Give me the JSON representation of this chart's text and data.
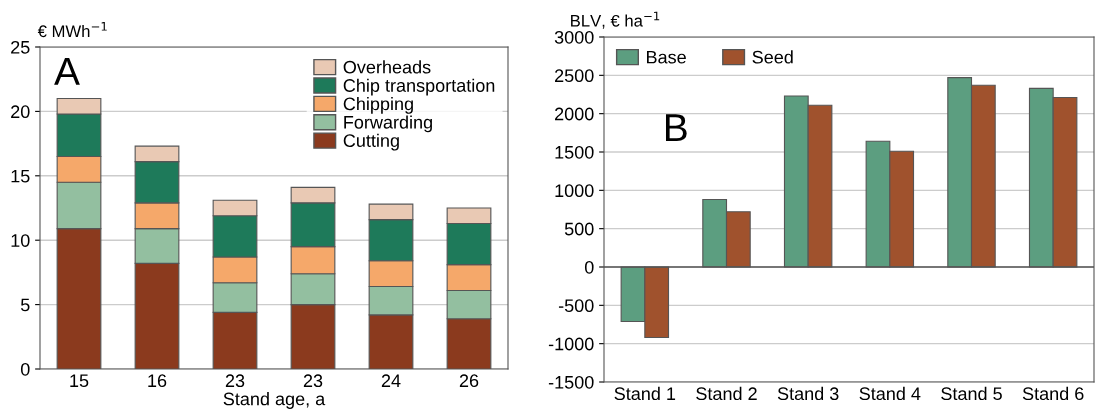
{
  "chart_data": [
    {
      "type": "bar",
      "title": "A",
      "ylabel": "€ MWh$^{−1}$",
      "xlabel": "Stand age, a",
      "stacked": true,
      "categories": [
        "15",
        "16",
        "23",
        "23",
        "24",
        "26"
      ],
      "ylim": [
        0,
        25
      ],
      "yticks": [
        0,
        5,
        10,
        15,
        20,
        25
      ],
      "grid": "y",
      "legend": "top right",
      "series": [
        {
          "name": "Cutting",
          "color": "#8b3a1e",
          "values": [
            10.9,
            8.2,
            4.4,
            5.0,
            4.2,
            3.9
          ]
        },
        {
          "name": "Forwarding",
          "color": "#93bfa0",
          "values": [
            3.6,
            2.7,
            2.3,
            2.4,
            2.2,
            2.2
          ]
        },
        {
          "name": "Chipping",
          "color": "#f5a86a",
          "values": [
            2.0,
            2.0,
            2.0,
            2.1,
            2.0,
            2.0
          ]
        },
        {
          "name": "Chip transportation",
          "color": "#1e7a5a",
          "values": [
            3.3,
            3.2,
            3.2,
            3.4,
            3.2,
            3.2
          ]
        },
        {
          "name": "Overheads",
          "color": "#e9c9b4",
          "values": [
            1.2,
            1.2,
            1.2,
            1.2,
            1.2,
            1.2
          ]
        }
      ]
    },
    {
      "type": "bar",
      "title": "B",
      "ylabel": "BLV, € ha$^{−1}$",
      "categories": [
        "Stand 1",
        "Stand 2",
        "Stand 3",
        "Stand 4",
        "Stand 5",
        "Stand 6"
      ],
      "ylim": [
        -1500,
        3000
      ],
      "yticks": [
        -1500,
        -1000,
        -500,
        0,
        500,
        1000,
        1500,
        2000,
        2500,
        3000
      ],
      "grid": "y",
      "legend": "top left",
      "series": [
        {
          "name": "Base",
          "color": "#5c9e80",
          "values": [
            -710,
            880,
            2230,
            1640,
            2470,
            2330
          ]
        },
        {
          "name": "Seed",
          "color": "#a0522d",
          "values": [
            -920,
            720,
            2110,
            1510,
            2370,
            2210
          ]
        }
      ]
    }
  ]
}
